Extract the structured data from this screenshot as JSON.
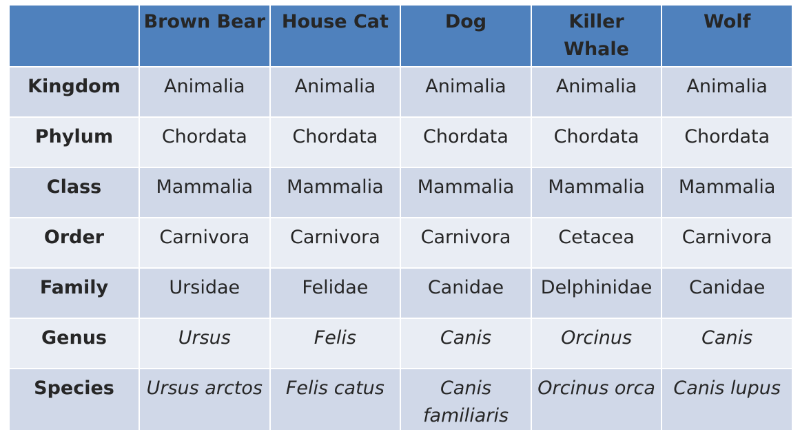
{
  "table": {
    "columns": [
      "",
      "Brown Bear",
      "House Cat",
      "Dog",
      "Killer Whale",
      "Wolf"
    ],
    "rows": [
      {
        "label": "Kingdom",
        "cells": [
          "Animalia",
          "Animalia",
          "Animalia",
          "Animalia",
          "Animalia"
        ]
      },
      {
        "label": "Phylum",
        "cells": [
          "Chordata",
          "Chordata",
          "Chordata",
          "Chordata",
          "Chordata"
        ]
      },
      {
        "label": "Class",
        "cells": [
          "Mammalia",
          "Mammalia",
          "Mammalia",
          "Mammalia",
          "Mammalia"
        ]
      },
      {
        "label": "Order",
        "cells": [
          "Carnivora",
          "Carnivora",
          "Carnivora",
          "Cetacea",
          "Carnivora"
        ]
      },
      {
        "label": "Family",
        "cells": [
          "Ursidae",
          "Felidae",
          "Canidae",
          "Delphinidae",
          "Canidae"
        ]
      },
      {
        "label": "Genus",
        "cells": [
          "Ursus",
          "Felis",
          "Canis",
          "Orcinus",
          "Canis"
        ]
      },
      {
        "label": "Species",
        "cells": [
          "Ursus arctos",
          "Felis catus",
          "Canis familiaris",
          "Orcinus orca",
          "Canis lupus"
        ]
      }
    ],
    "italic_rows": [
      "Genus",
      "Species"
    ],
    "colors": {
      "header_bg": "#4f81bd",
      "row_odd_bg": "#d0d8e8",
      "row_even_bg": "#e9edf4",
      "text": "#262626"
    }
  }
}
